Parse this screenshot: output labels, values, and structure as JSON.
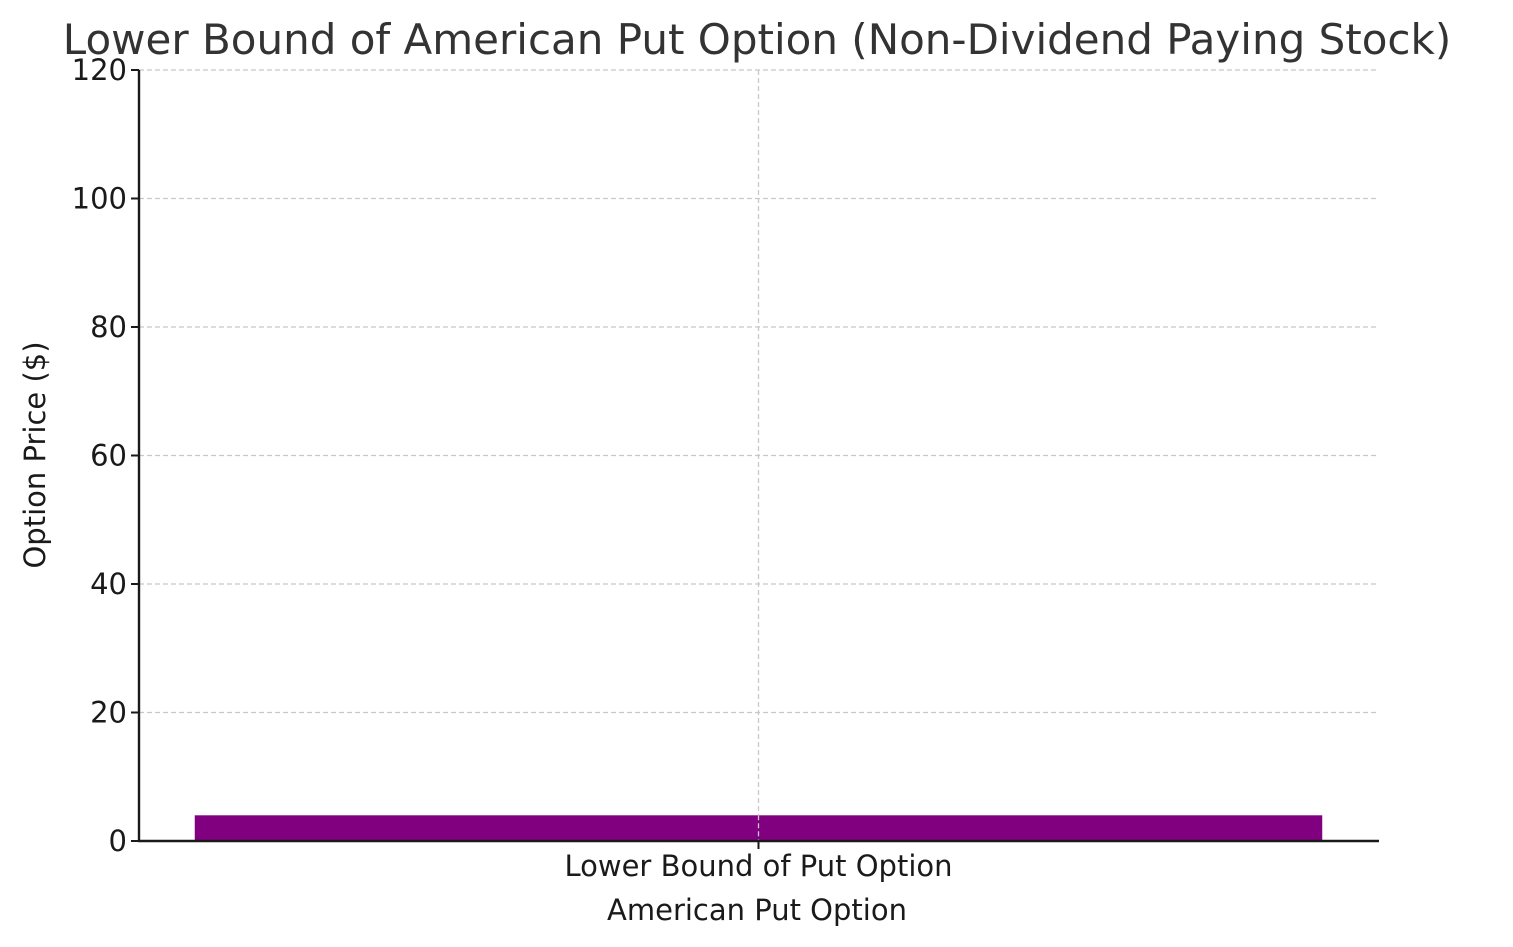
{
  "chart_data": {
    "type": "bar",
    "title": "Lower Bound of American Put Option (Non-Dividend Paying Stock)",
    "xlabel": "American Put Option",
    "ylabel": "Option Price ($)",
    "categories": [
      "Lower Bound of Put Option"
    ],
    "values": [
      4
    ],
    "ylim": [
      0,
      120
    ],
    "yticks": [
      0,
      20,
      40,
      60,
      80,
      100,
      120
    ],
    "grid": true,
    "bar_color": "#800080"
  }
}
